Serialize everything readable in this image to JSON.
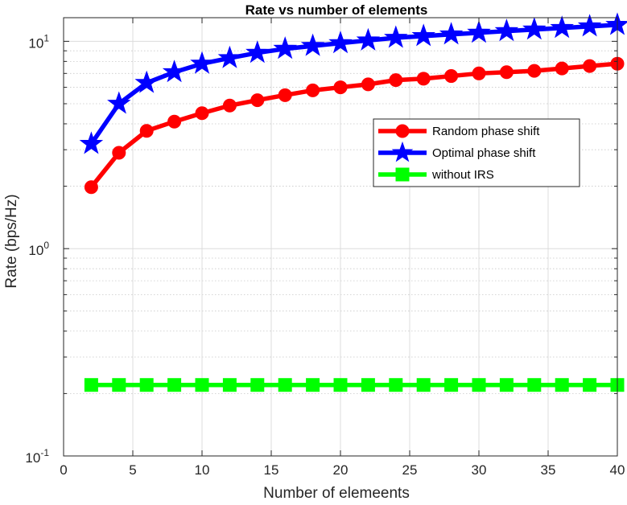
{
  "chart_data": {
    "type": "line",
    "title": "Rate vs number of elements",
    "xlabel": "Number of elemeents",
    "ylabel": "Rate (bps/Hz)",
    "xlim": [
      0,
      40
    ],
    "ylim": [
      0.1,
      13
    ],
    "yscale": "log",
    "grid": true,
    "minor_grid": true,
    "legend_position": "right, upper-middle",
    "x_ticks": [
      0,
      5,
      10,
      15,
      20,
      25,
      30,
      35,
      40
    ],
    "y_ticks": [
      {
        "value": 0.1,
        "base": "10",
        "exp": "-1"
      },
      {
        "value": 1,
        "base": "10",
        "exp": "0"
      },
      {
        "value": 10,
        "base": "10",
        "exp": "1"
      }
    ],
    "x": [
      2,
      4,
      6,
      8,
      10,
      12,
      14,
      16,
      18,
      20,
      22,
      24,
      26,
      28,
      30,
      32,
      34,
      36,
      38,
      40
    ],
    "series": [
      {
        "name": "Random phase shift",
        "color": "#ff0000",
        "marker": "circle",
        "values": [
          1.98,
          2.9,
          3.7,
          4.1,
          4.5,
          4.9,
          5.2,
          5.5,
          5.8,
          6.0,
          6.2,
          6.5,
          6.6,
          6.8,
          7.0,
          7.1,
          7.2,
          7.4,
          7.6,
          7.8
        ]
      },
      {
        "name": "Optimal phase shift",
        "color": "#0000ff",
        "marker": "star",
        "values": [
          3.2,
          5.0,
          6.3,
          7.1,
          7.8,
          8.3,
          8.8,
          9.2,
          9.5,
          9.8,
          10.1,
          10.4,
          10.6,
          10.8,
          11.0,
          11.2,
          11.4,
          11.6,
          11.8,
          12.0
        ]
      },
      {
        "name": "without IRS",
        "color": "#00ff00",
        "marker": "square",
        "values": [
          0.22,
          0.22,
          0.22,
          0.22,
          0.22,
          0.22,
          0.22,
          0.22,
          0.22,
          0.22,
          0.22,
          0.22,
          0.22,
          0.22,
          0.22,
          0.22,
          0.22,
          0.22,
          0.22,
          0.22
        ]
      }
    ]
  }
}
